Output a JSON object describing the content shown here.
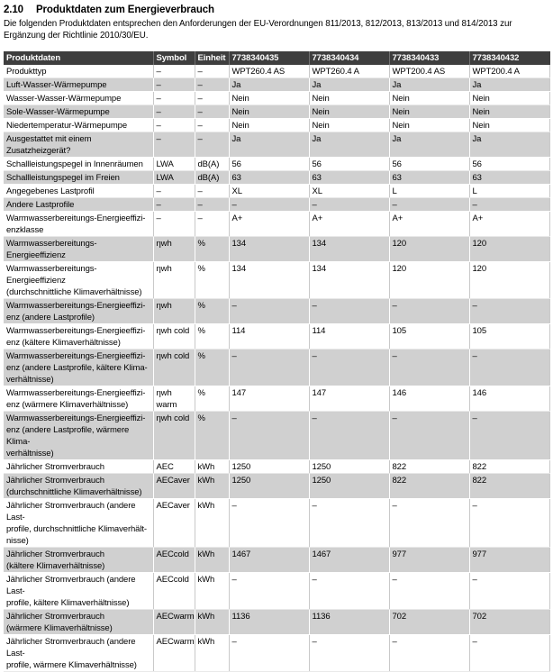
{
  "page": {
    "section_number": "2.10",
    "section_title": "Produktdaten zum Energieverbrauch",
    "intro": "Die folgenden Produktdaten entsprechen den Anforderungen der EU-Verordnungen 811/2013, 812/2013, 813/2013 und 814/2013 zur Ergänzung der Richtlinie 2010/30/EU."
  },
  "colors": {
    "table_header_bg": "#3e3e3e",
    "row_alt_bg": "#d0d0d0"
  },
  "table": {
    "columns": [
      "Produktdaten",
      "Symbol",
      "Einheit",
      "7738340435",
      "7738340434",
      "7738340433",
      "7738340432"
    ],
    "rows": [
      {
        "label": "Produkttyp",
        "symbol": "–",
        "unit": "–",
        "values": [
          "WPT260.4 AS",
          "WPT260.4 A",
          "WPT200.4 AS",
          "WPT200.4 A"
        ]
      },
      {
        "label": "Luft-Wasser-Wärmepumpe",
        "symbol": "–",
        "unit": "–",
        "values": [
          "Ja",
          "Ja",
          "Ja",
          "Ja"
        ]
      },
      {
        "label": "Wasser-Wasser-Wärmepumpe",
        "symbol": "–",
        "unit": "–",
        "values": [
          "Nein",
          "Nein",
          "Nein",
          "Nein"
        ]
      },
      {
        "label": "Sole-Wasser-Wärmepumpe",
        "symbol": "–",
        "unit": "–",
        "values": [
          "Nein",
          "Nein",
          "Nein",
          "Nein"
        ]
      },
      {
        "label": "Niedertemperatur-Wärmepumpe",
        "symbol": "–",
        "unit": "–",
        "values": [
          "Nein",
          "Nein",
          "Nein",
          "Nein"
        ]
      },
      {
        "label": "Ausgestattet mit einem Zusatzheizgerät?",
        "symbol": "–",
        "unit": "–",
        "values": [
          "Ja",
          "Ja",
          "Ja",
          "Ja"
        ]
      },
      {
        "label": "Schallleistungspegel in Innenräumen",
        "symbol": "LWA",
        "unit": "dB(A)",
        "values": [
          "56",
          "56",
          "56",
          "56"
        ]
      },
      {
        "label": "Schallleistungspegel im Freien",
        "symbol": "LWA",
        "unit": "dB(A)",
        "values": [
          "63",
          "63",
          "63",
          "63"
        ]
      },
      {
        "label": "Angegebenes Lastprofil",
        "symbol": "–",
        "unit": "–",
        "values": [
          "XL",
          "XL",
          "L",
          "L"
        ]
      },
      {
        "label": "Andere Lastprofile",
        "symbol": "–",
        "unit": "–",
        "values": [
          "–",
          "–",
          "–",
          "–"
        ]
      },
      {
        "label": "Warmwasserbereitungs-Energieeffizi-\nenzklasse",
        "symbol": "–",
        "unit": "–",
        "values": [
          "A+",
          "A+",
          "A+",
          "A+"
        ]
      },
      {
        "label": "Warmwasserbereitungs-Energieeffizienz",
        "symbol": "ηwh",
        "unit": "%",
        "values": [
          "134",
          "134",
          "120",
          "120"
        ]
      },
      {
        "label": "Warmwasserbereitungs-Energieeffizienz\n(durchschnittliche Klimaverhältnisse)",
        "symbol": "ηwh",
        "unit": "%",
        "values": [
          "134",
          "134",
          "120",
          "120"
        ]
      },
      {
        "label": "Warmwasserbereitungs-Energieeffizi-\nenz (andere Lastprofile)",
        "symbol": "ηwh",
        "unit": "%",
        "values": [
          "–",
          "–",
          "–",
          "–"
        ]
      },
      {
        "label": "Warmwasserbereitungs-Energieeffizi-\nenz (kältere Klimaverhältnisse)",
        "symbol": "ηwh cold",
        "unit": "%",
        "values": [
          "114",
          "114",
          "105",
          "105"
        ]
      },
      {
        "label": "Warmwasserbereitungs-Energieeffizi-\nenz (andere Lastprofile, kältere Klima-\nverhältnisse)",
        "symbol": "ηwh cold",
        "unit": "%",
        "values": [
          "–",
          "–",
          "–",
          "–"
        ]
      },
      {
        "label": "Warmwasserbereitungs-Energieeffizi-\nenz (wärmere Klimaverhältnisse)",
        "symbol": "ηwh warm",
        "unit": "%",
        "values": [
          "147",
          "147",
          "146",
          "146"
        ]
      },
      {
        "label": "Warmwasserbereitungs-Energieeffizi-\nenz (andere Lastprofile, wärmere Klima-\nverhältnisse)",
        "symbol": "ηwh cold",
        "unit": "%",
        "values": [
          "–",
          "–",
          "–",
          "–"
        ]
      },
      {
        "label": "Jährlicher Stromverbrauch",
        "symbol": "AEC",
        "unit": "kWh",
        "values": [
          "1250",
          "1250",
          "822",
          "822"
        ]
      },
      {
        "label": "Jährlicher Stromverbrauch\n(durchschnittliche Klimaverhältnisse)",
        "symbol": "AECaver",
        "unit": "kWh",
        "values": [
          "1250",
          "1250",
          "822",
          "822"
        ]
      },
      {
        "label": "Jährlicher Stromverbrauch (andere Last-\nprofile, durchschnittliche Klimaverhält-\nnisse)",
        "symbol": "AECaver",
        "unit": "kWh",
        "values": [
          "–",
          "–",
          "–",
          "–"
        ]
      },
      {
        "label": "Jährlicher Stromverbrauch\n(kältere Klimaverhältnisse)",
        "symbol": "AECcold",
        "unit": "kWh",
        "values": [
          "1467",
          "1467",
          "977",
          "977"
        ]
      },
      {
        "label": "Jährlicher Stromverbrauch (andere Last-\nprofile, kältere Klimaverhältnisse)",
        "symbol": "AECcold",
        "unit": "kWh",
        "values": [
          "–",
          "–",
          "–",
          "–"
        ]
      },
      {
        "label": "Jährlicher Stromverbrauch\n(wärmere Klimaverhältnisse)",
        "symbol": "AECwarm",
        "unit": "kWh",
        "values": [
          "1136",
          "1136",
          "702",
          "702"
        ]
      },
      {
        "label": "Jährlicher Stromverbrauch (andere Last-\nprofile, wärmere Klimaverhältnisse)",
        "symbol": "AECwarm",
        "unit": "kWh",
        "values": [
          "–",
          "–",
          "–",
          "–"
        ]
      }
    ]
  }
}
